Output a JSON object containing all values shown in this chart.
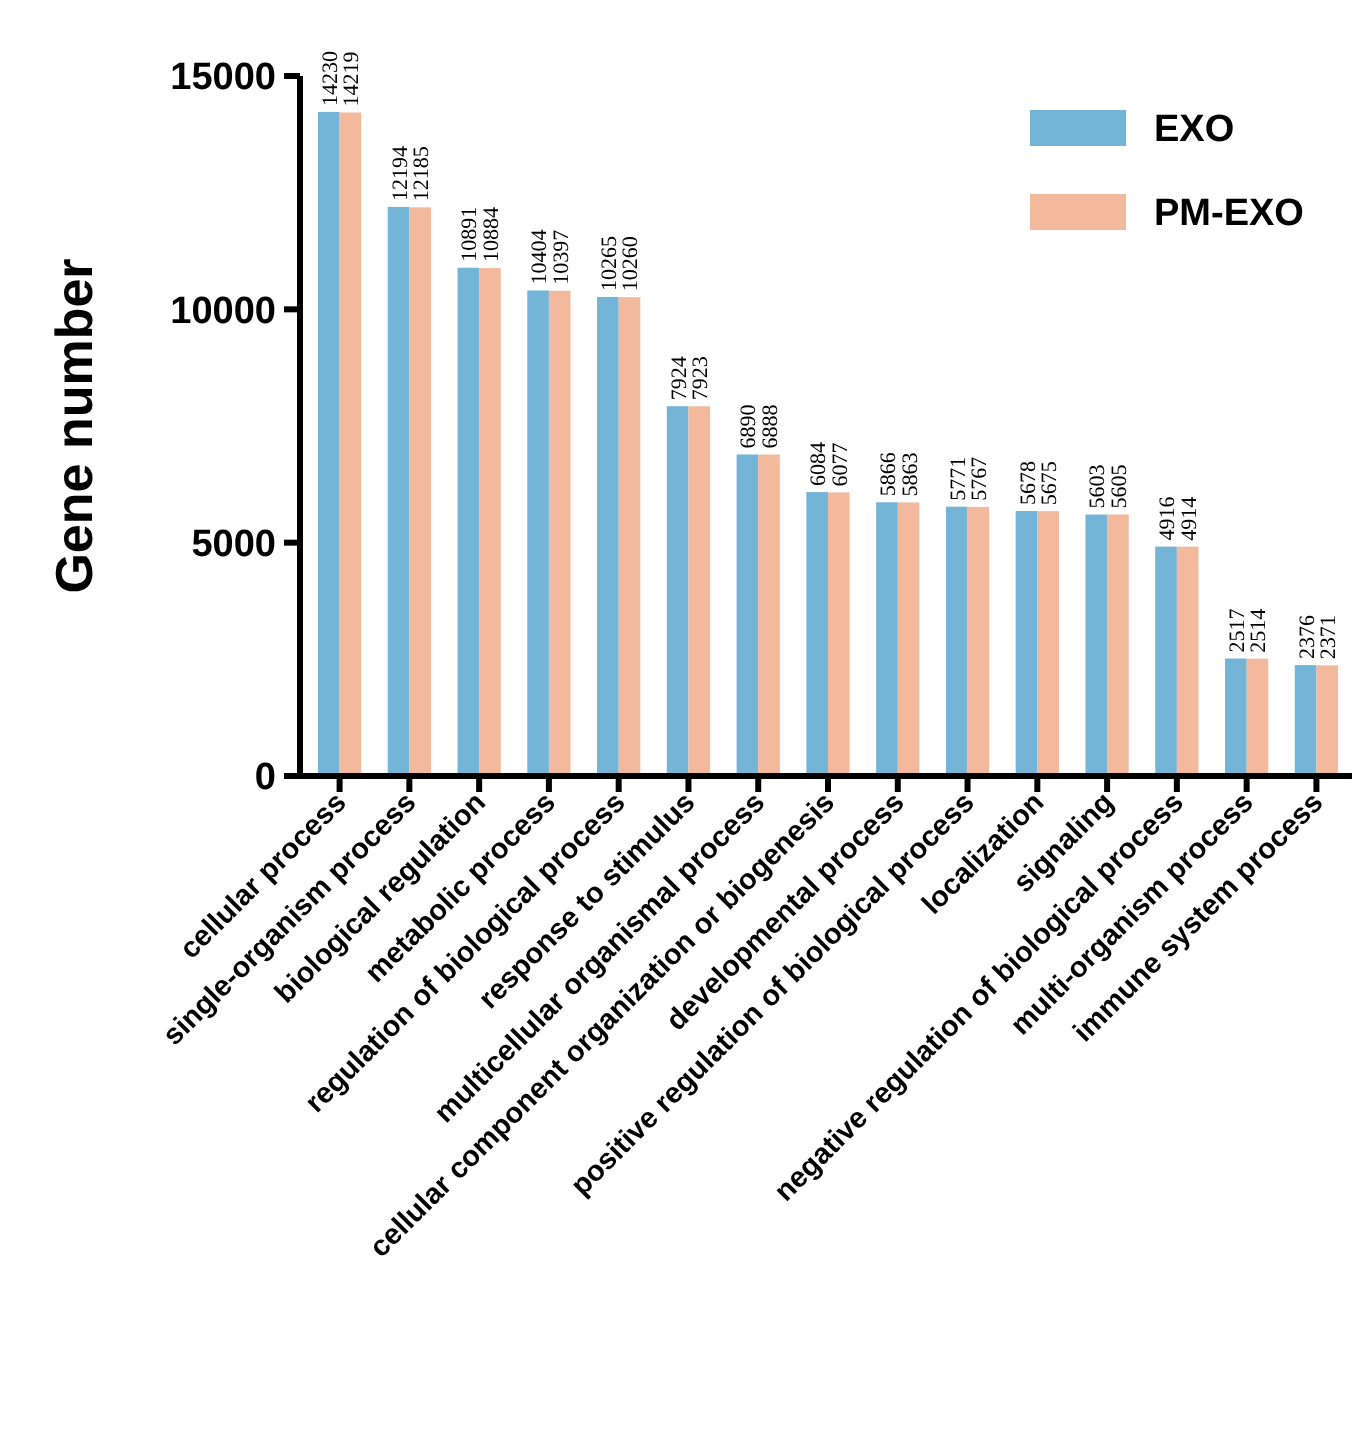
{
  "chart_data": {
    "type": "bar",
    "ylabel": "Gene number",
    "categories": [
      "cellular process",
      "single-organism process",
      "biological regulation",
      "metabolic process",
      "regulation of biological process",
      "response to stimulus",
      "multicellular organismal process",
      "cellular component organization or biogenesis",
      "developmental process",
      "positive regulation of biological process",
      "localization",
      "signaling",
      "negative regulation of biological process",
      "multi-organism process",
      "immune system process"
    ],
    "series": [
      {
        "name": "EXO",
        "color": "#74b4d6",
        "values": [
          14230,
          12194,
          10891,
          10404,
          10265,
          7924,
          6890,
          6084,
          5866,
          5771,
          5678,
          5603,
          4916,
          2517,
          2376
        ]
      },
      {
        "name": "PM-EXO",
        "color": "#f2b99d",
        "values": [
          14219,
          12185,
          10884,
          10397,
          10260,
          7923,
          6888,
          6077,
          5863,
          5767,
          5675,
          5605,
          4914,
          2514,
          2371
        ]
      }
    ],
    "ylim": [
      0,
      15000
    ],
    "yticks": [
      0,
      5000,
      10000,
      15000
    ],
    "grid": false,
    "legend": "top right",
    "data_labels": true
  }
}
